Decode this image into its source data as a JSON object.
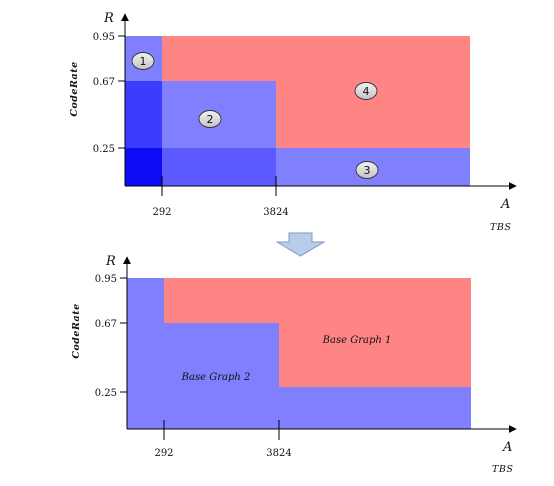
{
  "colors": {
    "red_region": "#ff8585",
    "blue_region": "#8080ff",
    "blue_mid": "#5a5aff",
    "blue_deep": "#2020ff",
    "blue_dark": "#0c0cf5",
    "axis": "#000000",
    "arrow_fill": "#b8cdea",
    "arrow_stroke": "#7e99c4",
    "badge_fill": "#d9d9d9"
  },
  "top": {
    "y_axis_letter": "R",
    "y_axis_label": "CodeRate",
    "x_axis_letter": "A",
    "x_axis_label": "TBS",
    "y_ticks": [
      "0.95",
      "0.67",
      "0.25"
    ],
    "x_ticks": [
      "292",
      "3824"
    ],
    "badges": [
      "1",
      "2",
      "3",
      "4"
    ]
  },
  "bottom": {
    "y_axis_letter": "R",
    "y_axis_label": "CodeRate",
    "x_axis_letter": "A",
    "x_axis_label": "TBS",
    "y_ticks": [
      "0.95",
      "0.67",
      "0.25"
    ],
    "x_ticks": [
      "292",
      "3824"
    ],
    "region_bg1": "Base Graph 1",
    "region_bg2": "Base Graph 2"
  },
  "transition_arrow_icon": "down-arrow-icon"
}
